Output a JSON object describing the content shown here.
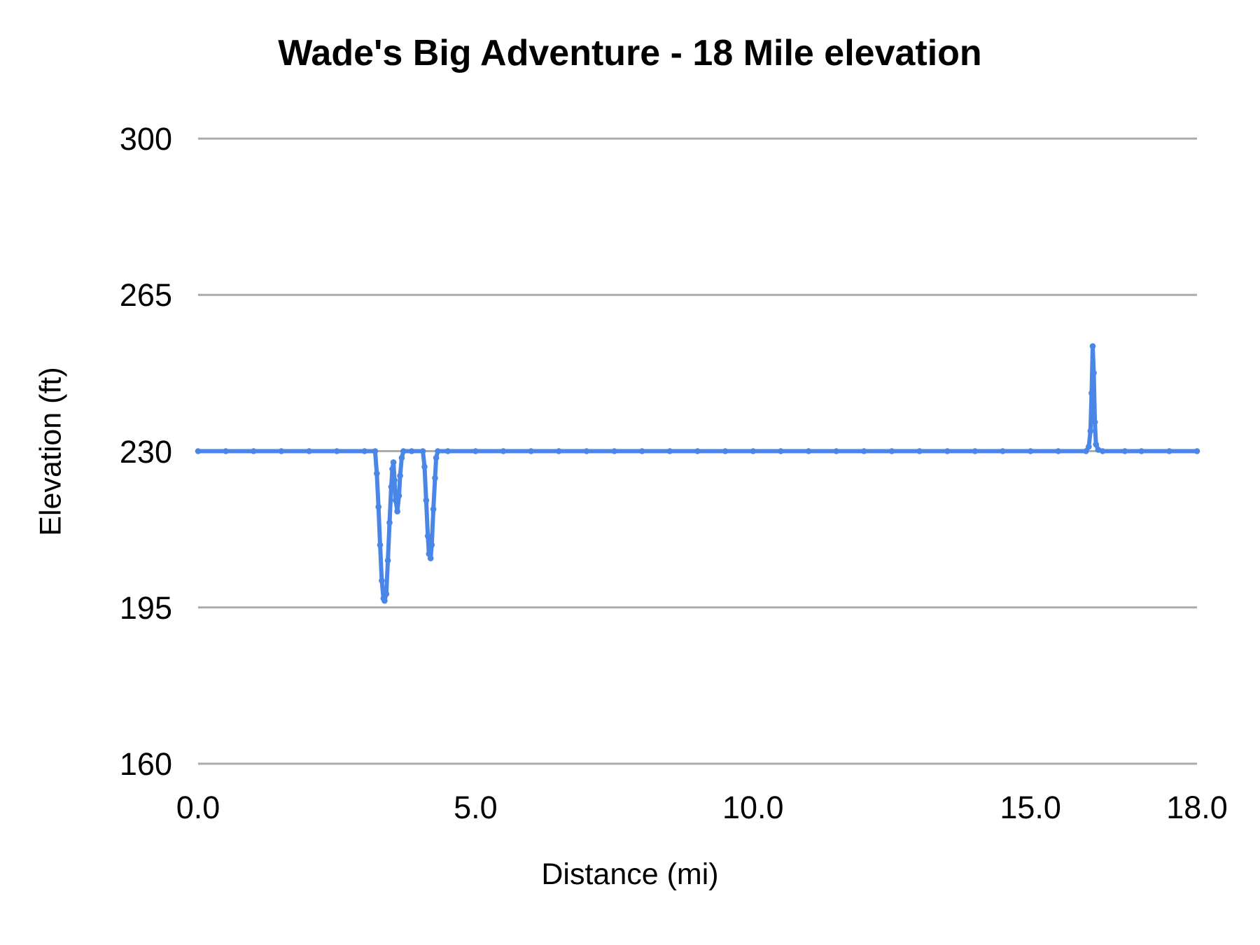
{
  "chart_data": {
    "type": "line",
    "title": "Wade's Big Adventure - 18 Mile elevation",
    "xlabel": "Distance (mi)",
    "ylabel": "Elevation (ft)",
    "xlim": [
      0,
      18
    ],
    "ylim": [
      160,
      300
    ],
    "x_ticks": [
      {
        "label": "0.0",
        "value": 0
      },
      {
        "label": "5.0",
        "value": 5
      },
      {
        "label": "10.0",
        "value": 10
      },
      {
        "label": "15.0",
        "value": 15
      },
      {
        "label": "18.0",
        "value": 18
      }
    ],
    "y_ticks": [
      {
        "label": "300",
        "value": 300
      },
      {
        "label": "265",
        "value": 265
      },
      {
        "label": "230",
        "value": 230
      },
      {
        "label": "195",
        "value": 195
      },
      {
        "label": "160",
        "value": 160
      }
    ],
    "grid": "horizontal-only",
    "legend_position": "none",
    "colors": {
      "line": "#4a86e8",
      "gridline": "#ababab",
      "text": "#000000",
      "background": "#ffffff"
    },
    "series": [
      {
        "name": "Elevation (ft)",
        "marker": "circle",
        "points": [
          [
            0,
            230
          ],
          [
            0.5,
            230
          ],
          [
            1,
            230
          ],
          [
            1.5,
            230
          ],
          [
            2,
            230
          ],
          [
            2.5,
            230
          ],
          [
            3,
            230
          ],
          [
            3.19,
            230
          ],
          [
            3.22,
            225
          ],
          [
            3.25,
            217.5
          ],
          [
            3.28,
            209
          ],
          [
            3.31,
            201
          ],
          [
            3.34,
            197
          ],
          [
            3.36,
            196.5
          ],
          [
            3.39,
            198
          ],
          [
            3.42,
            205.5
          ],
          [
            3.45,
            214
          ],
          [
            3.48,
            222
          ],
          [
            3.5,
            226
          ],
          [
            3.52,
            227.5
          ],
          [
            3.54,
            223.5
          ],
          [
            3.56,
            219
          ],
          [
            3.59,
            216.5
          ],
          [
            3.62,
            220
          ],
          [
            3.64,
            224.5
          ],
          [
            3.67,
            228.5
          ],
          [
            3.7,
            230
          ],
          [
            3.85,
            230
          ],
          [
            4.05,
            230
          ],
          [
            4.08,
            226.5
          ],
          [
            4.11,
            219
          ],
          [
            4.14,
            211
          ],
          [
            4.16,
            207
          ],
          [
            4.19,
            206
          ],
          [
            4.21,
            209
          ],
          [
            4.24,
            217
          ],
          [
            4.27,
            224
          ],
          [
            4.29,
            228.5
          ],
          [
            4.32,
            230
          ],
          [
            4.5,
            230
          ],
          [
            5,
            230
          ],
          [
            5.5,
            230
          ],
          [
            6,
            230
          ],
          [
            6.5,
            230
          ],
          [
            7,
            230
          ],
          [
            7.5,
            230
          ],
          [
            8,
            230
          ],
          [
            8.5,
            230
          ],
          [
            9,
            230
          ],
          [
            9.5,
            230
          ],
          [
            10,
            230
          ],
          [
            10.5,
            230
          ],
          [
            11,
            230
          ],
          [
            11.5,
            230
          ],
          [
            12,
            230
          ],
          [
            12.5,
            230
          ],
          [
            13,
            230
          ],
          [
            13.5,
            230
          ],
          [
            14,
            230
          ],
          [
            14.5,
            230
          ],
          [
            15,
            230
          ],
          [
            15.5,
            230
          ],
          [
            16,
            230
          ],
          [
            16.05,
            231
          ],
          [
            16.08,
            234.5
          ],
          [
            16.1,
            243
          ],
          [
            16.12,
            253.5
          ],
          [
            16.14,
            247.5
          ],
          [
            16.16,
            236.5
          ],
          [
            16.18,
            231.5
          ],
          [
            16.22,
            230.3
          ],
          [
            16.3,
            230
          ],
          [
            16.7,
            230
          ],
          [
            17,
            230
          ],
          [
            17.5,
            230
          ],
          [
            18,
            230
          ]
        ]
      }
    ]
  }
}
